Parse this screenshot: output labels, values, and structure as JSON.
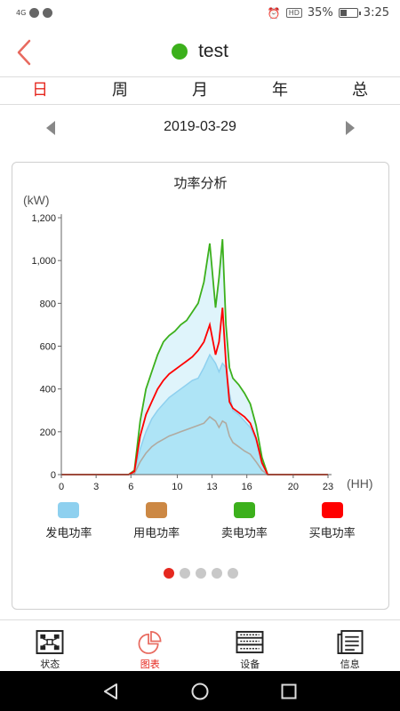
{
  "status_bar": {
    "network": "4G",
    "battery_percent": "35%",
    "battery_level": 0.35,
    "time": "3:25",
    "hd": "HD"
  },
  "header": {
    "title": "test",
    "status_color": "#3cb01c"
  },
  "tabs": {
    "items": [
      "日",
      "周",
      "月",
      "年",
      "总"
    ],
    "active_index": 0
  },
  "date_nav": {
    "date": "2019-03-29"
  },
  "chart": {
    "title": "功率分析",
    "y_unit": "(kW)",
    "x_unit": "(HH)",
    "legend": [
      {
        "label": "发电功率",
        "color": "#8ed0ef"
      },
      {
        "label": "用电功率",
        "color": "#cc8844"
      },
      {
        "label": "卖电功率",
        "color": "#3cb01c"
      },
      {
        "label": "买电功率",
        "color": "#ff0000"
      }
    ],
    "pager": {
      "count": 5,
      "active_index": 0
    }
  },
  "chart_data": {
    "type": "area",
    "title": "功率分析",
    "xlabel": "(HH)",
    "ylabel": "(kW)",
    "xlim": [
      0,
      23
    ],
    "ylim": [
      0,
      1200
    ],
    "x_ticks": [
      "0",
      "3",
      "6",
      "10",
      "13",
      "16",
      "20",
      "23"
    ],
    "x_tick_values": [
      0,
      3,
      6,
      10,
      13,
      16,
      20,
      23
    ],
    "y_ticks": [
      "0",
      "200",
      "400",
      "600",
      "800",
      "1,000",
      "1,200"
    ],
    "y_tick_values": [
      0,
      200,
      400,
      600,
      800,
      1000,
      1200
    ],
    "grid": false,
    "legend_position": "bottom",
    "x": [
      0,
      5.8,
      6.3,
      6.8,
      7.3,
      7.8,
      8.3,
      8.8,
      9.3,
      9.8,
      10.3,
      10.8,
      11.3,
      11.8,
      12.3,
      12.8,
      13.3,
      13.6,
      13.9,
      14.2,
      14.5,
      14.8,
      15.3,
      15.8,
      16.3,
      16.8,
      17.3,
      17.8,
      23
    ],
    "series": [
      {
        "name": "发电功率",
        "color": "#8ed0ef",
        "values": [
          0,
          0,
          10,
          120,
          200,
          260,
          300,
          330,
          360,
          380,
          400,
          420,
          440,
          450,
          500,
          560,
          520,
          480,
          520,
          500,
          380,
          300,
          280,
          250,
          220,
          160,
          60,
          0,
          0
        ]
      },
      {
        "name": "用电功率",
        "color": "#cc8844",
        "values": [
          0,
          0,
          5,
          60,
          100,
          130,
          150,
          165,
          180,
          190,
          200,
          210,
          220,
          230,
          240,
          270,
          250,
          220,
          250,
          240,
          180,
          150,
          130,
          110,
          95,
          60,
          20,
          0,
          0
        ]
      },
      {
        "name": "卖电功率",
        "color": "#3cb01c",
        "values": [
          0,
          0,
          20,
          250,
          400,
          480,
          560,
          620,
          650,
          670,
          700,
          720,
          760,
          800,
          900,
          1080,
          780,
          920,
          1100,
          700,
          500,
          450,
          420,
          380,
          330,
          230,
          80,
          0,
          0
        ]
      },
      {
        "name": "买电功率",
        "color": "#ff0000",
        "values": [
          0,
          0,
          15,
          180,
          280,
          340,
          400,
          440,
          470,
          490,
          510,
          530,
          550,
          580,
          620,
          700,
          560,
          620,
          780,
          520,
          340,
          310,
          290,
          270,
          240,
          170,
          55,
          0,
          0
        ]
      }
    ]
  },
  "bottom_nav": {
    "items": [
      {
        "label": "状态",
        "icon": "status-icon"
      },
      {
        "label": "图表",
        "icon": "pie-chart-icon"
      },
      {
        "label": "设备",
        "icon": "device-icon"
      },
      {
        "label": "信息",
        "icon": "info-list-icon"
      }
    ],
    "active_index": 1,
    "active_color": "#e5281f"
  },
  "system_nav": {
    "back": "back-icon",
    "home": "home-icon",
    "recents": "recents-icon"
  }
}
